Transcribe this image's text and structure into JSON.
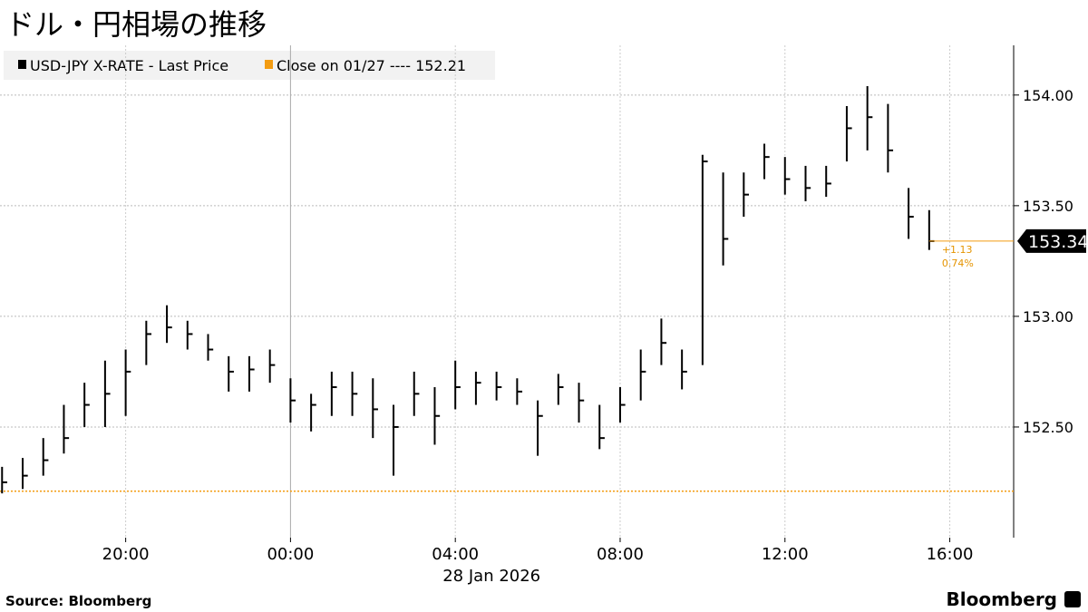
{
  "chart_data": {
    "type": "hlc",
    "title": "ドル・円相場の推移",
    "xlabel": "28 Jan 2026",
    "source": "Source:  Bloomberg",
    "brand": "Bloomberg",
    "xlim": [
      -7.05,
      17.55
    ],
    "xticks": [
      {
        "value": -4,
        "label": "20:00"
      },
      {
        "value": 0,
        "label": "00:00"
      },
      {
        "value": 4,
        "label": "04:00"
      },
      {
        "value": 8,
        "label": "08:00"
      },
      {
        "value": 12,
        "label": "12:00"
      },
      {
        "value": 16,
        "label": "16:00"
      }
    ],
    "ylim": [
      152.0,
      154.2
    ],
    "yticks": [
      {
        "value": 152.5,
        "label": "152.50"
      },
      {
        "value": 153,
        "label": "153.00"
      },
      {
        "value": 153.5,
        "label": "153.50"
      },
      {
        "value": 154,
        "label": "154.00"
      }
    ],
    "grid": true,
    "series": [
      {
        "name": "USD-JPY X-RATE - Last Price",
        "color": "#000000",
        "x": [
          -7,
          -6.5,
          -6,
          -5.5,
          -5,
          -4.5,
          -4,
          -3.5,
          -3,
          -2.5,
          -2,
          -1.5,
          -1,
          -0.5,
          0,
          0.5,
          1,
          1.5,
          2,
          2.5,
          3,
          3.5,
          4,
          4.5,
          5,
          5.5,
          6,
          6.5,
          7,
          7.5,
          8,
          8.5,
          9,
          9.5,
          10,
          10.5,
          11,
          11.5,
          12,
          12.5,
          13,
          13.5,
          14,
          14.5,
          15,
          15.5
        ],
        "high": [
          152.32,
          152.36,
          152.45,
          152.6,
          152.7,
          152.8,
          152.85,
          152.98,
          153.05,
          152.98,
          152.92,
          152.82,
          152.82,
          152.85,
          152.72,
          152.65,
          152.75,
          152.75,
          152.72,
          152.6,
          152.75,
          152.68,
          152.8,
          152.75,
          152.75,
          152.72,
          152.62,
          152.74,
          152.7,
          152.6,
          152.68,
          152.85,
          152.99,
          152.85,
          153.73,
          153.65,
          153.65,
          153.78,
          153.72,
          153.68,
          153.68,
          153.95,
          154.04,
          153.96,
          153.58,
          153.48
        ],
        "low": [
          152.2,
          152.22,
          152.28,
          152.38,
          152.5,
          152.5,
          152.55,
          152.78,
          152.88,
          152.85,
          152.8,
          152.66,
          152.66,
          152.7,
          152.52,
          152.48,
          152.55,
          152.55,
          152.45,
          152.28,
          152.55,
          152.42,
          152.58,
          152.6,
          152.62,
          152.6,
          152.37,
          152.6,
          152.52,
          152.4,
          152.52,
          152.62,
          152.78,
          152.67,
          152.78,
          153.23,
          153.45,
          153.62,
          153.55,
          153.52,
          153.54,
          153.7,
          153.75,
          153.65,
          153.35,
          153.3
        ],
        "close": [
          152.25,
          152.28,
          152.35,
          152.45,
          152.6,
          152.65,
          152.75,
          152.92,
          152.95,
          152.92,
          152.85,
          152.75,
          152.76,
          152.78,
          152.62,
          152.6,
          152.68,
          152.65,
          152.58,
          152.5,
          152.65,
          152.55,
          152.68,
          152.7,
          152.68,
          152.66,
          152.55,
          152.68,
          152.62,
          152.45,
          152.6,
          152.75,
          152.88,
          152.75,
          153.7,
          153.35,
          153.55,
          153.72,
          153.62,
          153.58,
          153.6,
          153.85,
          153.9,
          153.75,
          153.45,
          153.34
        ]
      }
    ],
    "reference": {
      "label": "Close on 01/27 ---- 152.21",
      "value": 152.21,
      "color": "#f39c12"
    },
    "annotations": [
      "+1.13",
      "0.74%"
    ]
  }
}
